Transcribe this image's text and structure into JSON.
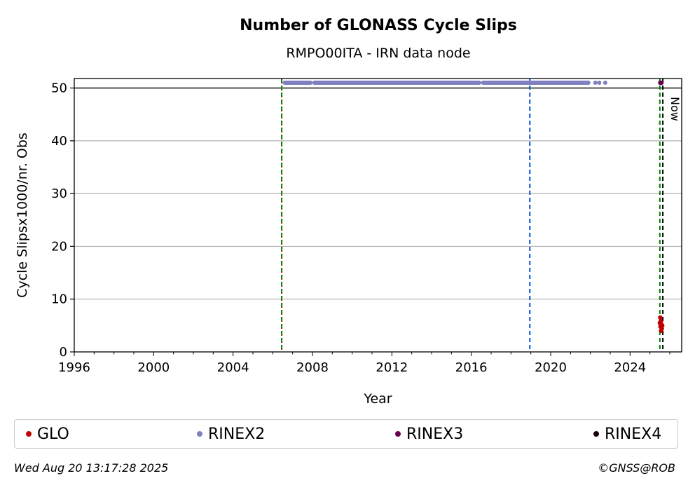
{
  "chart_data": {
    "type": "scatter",
    "title": "Number of GLONASS Cycle Slips",
    "subtitle": "RMPO00ITA - IRN data node",
    "xlabel": "Year",
    "ylabel": "Cycle Slipsx1000/nr. Obs",
    "xlim": [
      1996,
      2026.6
    ],
    "ylim": [
      0,
      51.8
    ],
    "xticks": [
      1996,
      2000,
      2004,
      2008,
      2012,
      2016,
      2020,
      2024
    ],
    "yticks": [
      0,
      10,
      20,
      30,
      40,
      50
    ],
    "grid": "horizontal",
    "threshold_line": 50,
    "vlines": [
      {
        "x": 2006.45,
        "color": "#cc0000",
        "style": "dotted"
      },
      {
        "x": 2006.45,
        "color": "#008000",
        "style": "dashed"
      },
      {
        "x": 2018.95,
        "color": "#0055cc",
        "style": "dashed"
      },
      {
        "x": 2025.5,
        "color": "#008000",
        "style": "dashed"
      },
      {
        "x": 2025.65,
        "color": "#000000",
        "style": "dashed",
        "label": "Now"
      }
    ],
    "series": [
      {
        "name": "GLO",
        "color": "#c00000",
        "points": [
          [
            2025.52,
            6.5
          ],
          [
            2025.55,
            5.8
          ],
          [
            2025.58,
            5.2
          ],
          [
            2025.53,
            4.8
          ],
          [
            2025.6,
            4.4
          ],
          [
            2025.56,
            4.0
          ],
          [
            2025.62,
            5.0
          ],
          [
            2025.5,
            5.5
          ]
        ]
      },
      {
        "name": "RINEX2",
        "color": "#8080c0",
        "segments": [
          [
            2006.6,
            2007.9
          ],
          [
            2008.1,
            2016.4
          ],
          [
            2016.6,
            2021.9
          ]
        ],
        "points": [
          [
            2022.25,
            51
          ],
          [
            2022.45,
            51
          ],
          [
            2022.75,
            51
          ]
        ],
        "y_clip": 51
      },
      {
        "name": "RINEX3",
        "color": "#6a0050",
        "points": [
          [
            2025.52,
            51
          ],
          [
            2025.58,
            51
          ]
        ]
      },
      {
        "name": "RINEX4",
        "color": "#1a0010",
        "points": []
      }
    ]
  },
  "legend": [
    {
      "label": "GLO",
      "color": "#c00000"
    },
    {
      "label": "RINEX2",
      "color": "#8080c0"
    },
    {
      "label": "RINEX3",
      "color": "#6a0050"
    },
    {
      "label": "RINEX4",
      "color": "#1a0010"
    }
  ],
  "footer": {
    "timestamp": "Wed Aug 20 13:17:28 2025",
    "credit": "©GNSS@ROB"
  }
}
